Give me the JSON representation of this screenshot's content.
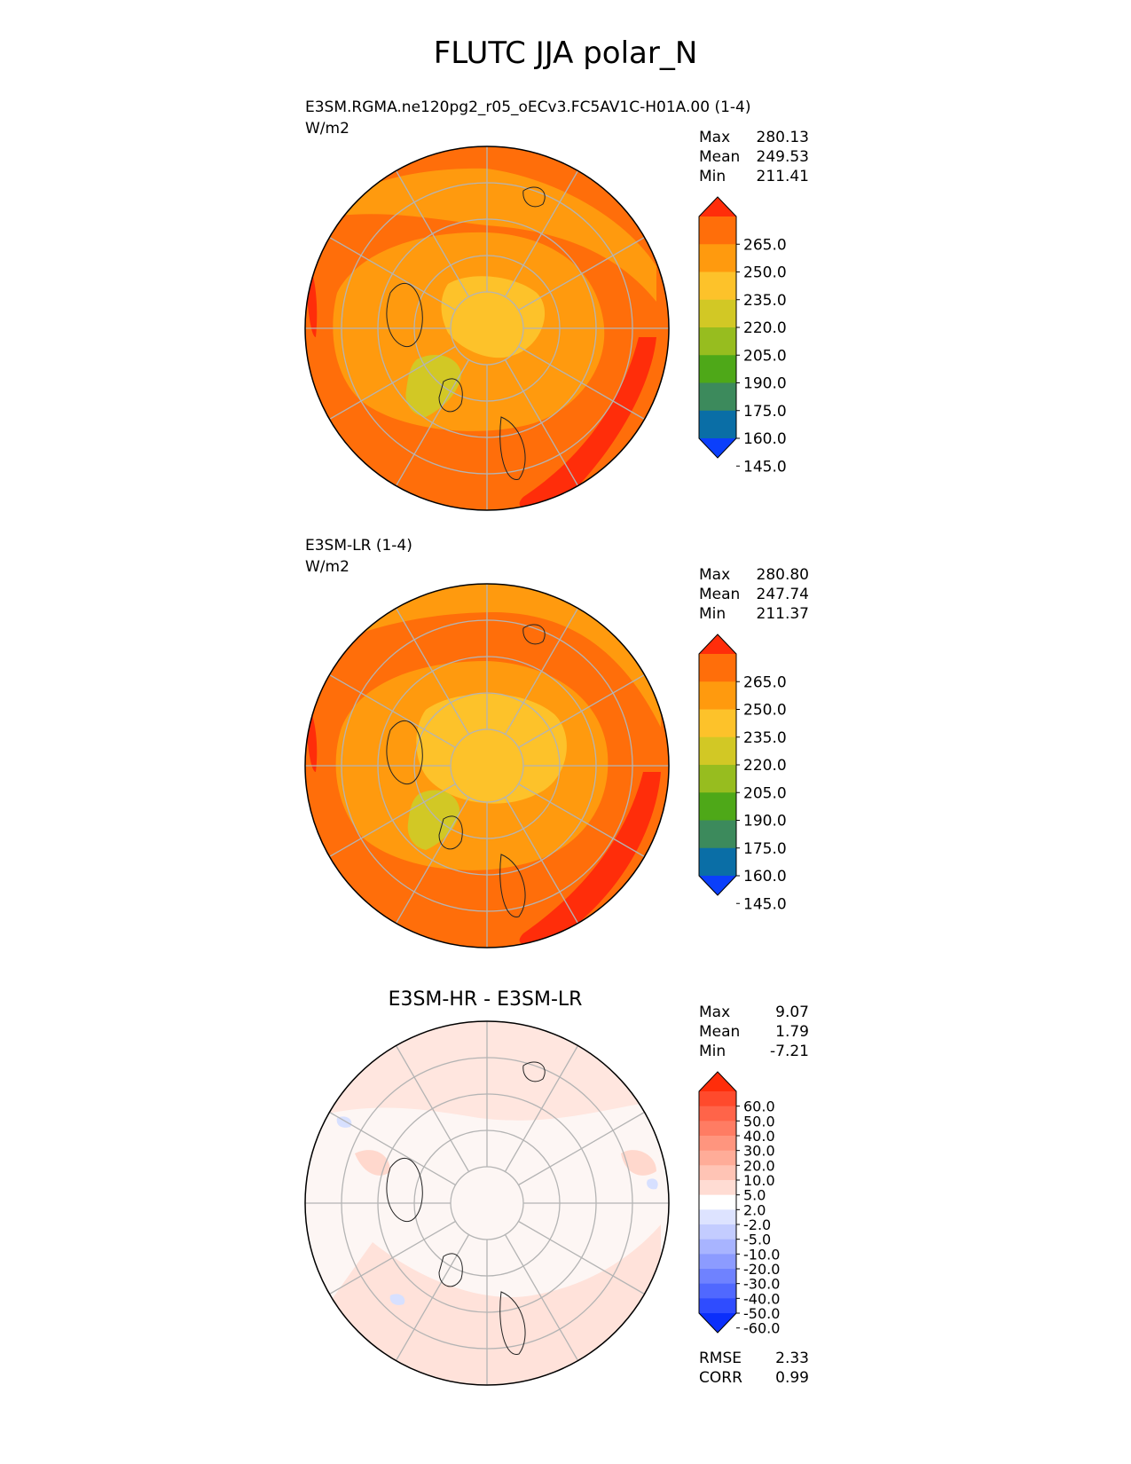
{
  "title": "FLUTC JJA polar_N",
  "panels": [
    {
      "id": "test",
      "label": "E3SM.RGMA.ne120pg2_r05_oECv3.FC5AV1C-H01A.00 (1-4)",
      "units": "W/m2",
      "stats": {
        "Max": "280.13",
        "Mean": "249.53",
        "Min": "211.41"
      },
      "colorbar": {
        "tick_labels": [
          "265.0",
          "250.0",
          "235.0",
          "220.0",
          "205.0",
          "190.0",
          "175.0",
          "160.0",
          "145.0"
        ],
        "colors": [
          "#ff2d0a",
          "#ff6e0a",
          "#ff9a0e",
          "#fdc22a",
          "#d2c825",
          "#97bd1f",
          "#4ea818",
          "#3c8a5c",
          "#0a6ea6",
          "#0b3ffb"
        ]
      }
    },
    {
      "id": "reference",
      "label": "E3SM-LR (1-4)",
      "units": "W/m2",
      "stats": {
        "Max": "280.80",
        "Mean": "247.74",
        "Min": "211.37"
      },
      "colorbar": {
        "tick_labels": [
          "265.0",
          "250.0",
          "235.0",
          "220.0",
          "205.0",
          "190.0",
          "175.0",
          "160.0",
          "145.0"
        ],
        "colors": [
          "#ff2d0a",
          "#ff6e0a",
          "#ff9a0e",
          "#fdc22a",
          "#d2c825",
          "#97bd1f",
          "#4ea818",
          "#3c8a5c",
          "#0a6ea6",
          "#0b3ffb"
        ]
      }
    },
    {
      "id": "difference",
      "label": "E3SM-HR - E3SM-LR",
      "stats": {
        "Max": "9.07",
        "Mean": "1.79",
        "Min": "-7.21"
      },
      "metrics": {
        "RMSE": "2.33",
        "CORR": "0.99"
      },
      "colorbar": {
        "tick_labels": [
          "60.0",
          "50.0",
          "40.0",
          "30.0",
          "20.0",
          "10.0",
          "5.0",
          "2.0",
          "-2.0",
          "-5.0",
          "-10.0",
          "-20.0",
          "-30.0",
          "-40.0",
          "-50.0",
          "-60.0"
        ],
        "colors": [
          "#ff2d0a",
          "#ff4a2c",
          "#ff6449",
          "#ff7c63",
          "#ff957e",
          "#ffac98",
          "#ffc4b5",
          "#ffdcd3",
          "#ffffff",
          "#dde3ff",
          "#c3ccff",
          "#a8b4ff",
          "#8c9bff",
          "#6f82ff",
          "#5068ff",
          "#2f4cff",
          "#0b2ffb"
        ]
      }
    }
  ],
  "chart_data": [
    {
      "type": "heatmap",
      "projection": "north-polar-stereographic",
      "title": "E3SM.RGMA.ne120pg2_r05_oECv3.FC5AV1C-H01A.00 (1-4)",
      "units": "W/m2",
      "levels": [
        145,
        160,
        175,
        190,
        205,
        220,
        235,
        250,
        265
      ],
      "stats": {
        "max": 280.13,
        "mean": 249.53,
        "min": 211.41
      },
      "latitude_rings": [
        50,
        60,
        70,
        80
      ],
      "meridians_deg": [
        0,
        30,
        60,
        90,
        120,
        150,
        180,
        210,
        240,
        270,
        300,
        330
      ]
    },
    {
      "type": "heatmap",
      "projection": "north-polar-stereographic",
      "title": "E3SM-LR (1-4)",
      "units": "W/m2",
      "levels": [
        145,
        160,
        175,
        190,
        205,
        220,
        235,
        250,
        265
      ],
      "stats": {
        "max": 280.8,
        "mean": 247.74,
        "min": 211.37
      }
    },
    {
      "type": "heatmap",
      "projection": "north-polar-stereographic",
      "title": "E3SM-HR - E3SM-LR",
      "levels": [
        -60,
        -50,
        -40,
        -30,
        -20,
        -10,
        -5,
        -2,
        2,
        5,
        10,
        20,
        30,
        40,
        50,
        60
      ],
      "stats": {
        "max": 9.07,
        "mean": 1.79,
        "min": -7.21
      },
      "rmse": 2.33,
      "corr": 0.99
    }
  ]
}
